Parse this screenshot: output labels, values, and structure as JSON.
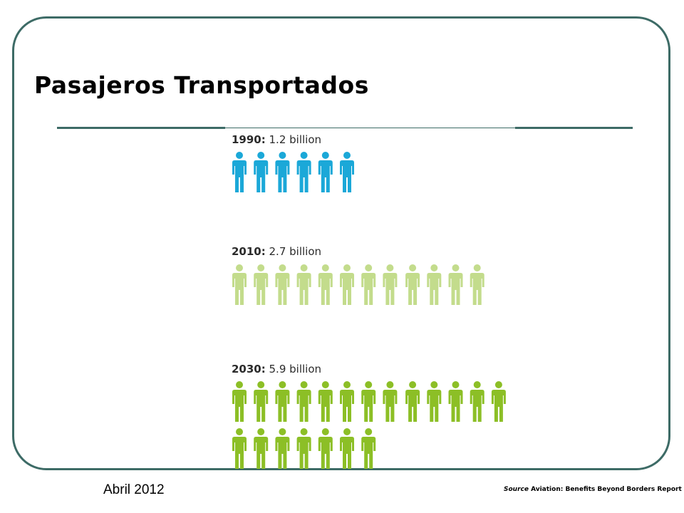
{
  "slide": {
    "title": "Pasajeros Transportados",
    "date": "Abril 2012",
    "source_label": "Source",
    "source_text": " Aviation: Benefits Beyond Borders Report"
  },
  "chart_data": {
    "type": "pictograph",
    "title": "",
    "series": [
      {
        "year": "1990:",
        "value_label": " 1.2 billion",
        "value": 1.2,
        "icons": 6,
        "color": "#1ba8d8"
      },
      {
        "year": "2010:",
        "value_label": " 2.7 billion",
        "value": 2.7,
        "icons": 12,
        "color": "#c3dc8c"
      },
      {
        "year": "2030:",
        "value_label": " 5.9 billion",
        "value": 5.9,
        "icons": 20,
        "color": "#8cbf26"
      }
    ],
    "icon": "person-icon"
  }
}
